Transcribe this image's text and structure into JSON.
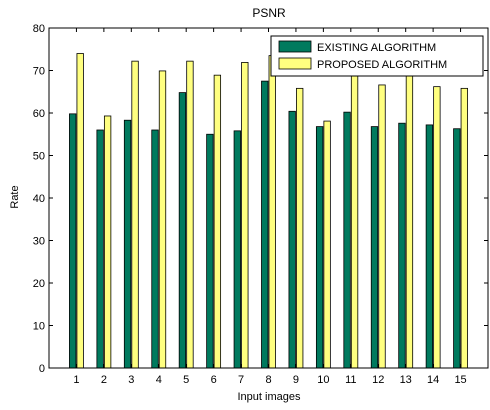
{
  "chart_data": {
    "type": "bar",
    "title": "PSNR",
    "xlabel": "Input images",
    "ylabel": "Rate",
    "ylim": [
      0,
      80
    ],
    "yticks": [
      0,
      10,
      20,
      30,
      40,
      50,
      60,
      70,
      80
    ],
    "categories": [
      "1",
      "2",
      "3",
      "4",
      "5",
      "6",
      "7",
      "8",
      "9",
      "10",
      "11",
      "12",
      "13",
      "14",
      "15"
    ],
    "series": [
      {
        "name": "EXISTING ALGORITHM",
        "color": "#007a5e",
        "values": [
          59.8,
          56.0,
          58.3,
          56.0,
          64.8,
          55.0,
          55.8,
          67.5,
          60.4,
          56.8,
          60.2,
          56.8,
          57.6,
          57.2,
          56.3
        ]
      },
      {
        "name": "PROPOSED ALGORITHM",
        "color": "#ffff80",
        "values": [
          74.0,
          59.3,
          72.2,
          69.9,
          72.2,
          68.9,
          71.9,
          73.5,
          65.8,
          58.1,
          73.0,
          66.6,
          72.5,
          66.2,
          65.8
        ]
      }
    ],
    "legend_position": "top-right",
    "grid": false
  }
}
